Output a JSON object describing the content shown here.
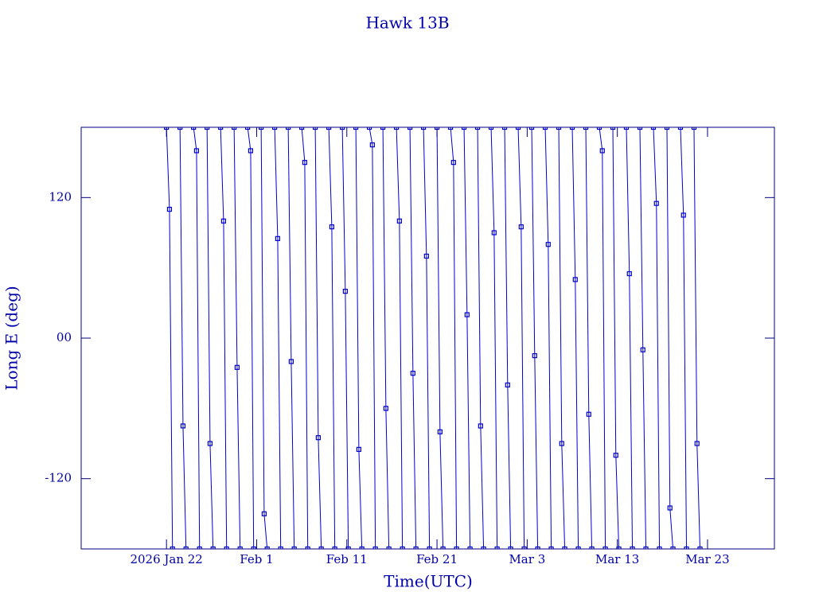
{
  "chart_data": {
    "type": "line",
    "title": "Hawk 13B",
    "xlabel": "Time(UTC)",
    "ylabel": "Long E (deg)",
    "xlim": [
      "2026-01-12T13:00",
      "2026-03-30T10:00"
    ],
    "xticks": [
      {
        "value": "2026-01-22T00:00",
        "label": "2026 Jan 22"
      },
      {
        "value": "2026-02-01T00:00",
        "label": "Feb  1"
      },
      {
        "value": "2026-02-11T00:00",
        "label": "Feb 11"
      },
      {
        "value": "2026-02-21T00:00",
        "label": "Feb 21"
      },
      {
        "value": "2026-03-03T00:00",
        "label": "Mar  3"
      },
      {
        "value": "2026-03-13T00:00",
        "label": "Mar 13"
      },
      {
        "value": "2026-03-23T00:00",
        "label": "Mar 23"
      }
    ],
    "ylim": [
      -180,
      180
    ],
    "yticks": [
      -120,
      {
        "value": 0,
        "label": "00"
      },
      120
    ],
    "series": [
      {
        "color": "#0000cc",
        "x": [
          "2026-01-22T00:00",
          "2026-01-22T08:00",
          "2026-01-22T16:00",
          null,
          "2026-01-23T12:00",
          "2026-01-23T20:00",
          "2026-01-24T04:00",
          null,
          "2026-01-25T00:00",
          "2026-01-25T08:00",
          "2026-01-25T16:00",
          null,
          "2026-01-26T12:00",
          "2026-01-26T20:00",
          "2026-01-27T04:00",
          null,
          "2026-01-28T00:00",
          "2026-01-28T08:00",
          "2026-01-28T16:00",
          null,
          "2026-01-29T12:00",
          "2026-01-29T20:00",
          "2026-01-30T04:00",
          null,
          "2026-01-31T00:00",
          "2026-01-31T08:00",
          "2026-01-31T16:00",
          null,
          "2026-02-01T12:00",
          "2026-02-01T20:00",
          "2026-02-02T04:00",
          null,
          "2026-02-03T00:00",
          "2026-02-03T08:00",
          "2026-02-03T16:00",
          null,
          "2026-02-04T12:00",
          "2026-02-04T20:00",
          "2026-02-05T04:00",
          null,
          "2026-02-06T00:00",
          "2026-02-06T08:00",
          "2026-02-06T16:00",
          null,
          "2026-02-07T12:00",
          "2026-02-07T20:00",
          "2026-02-08T04:00",
          null,
          "2026-02-09T00:00",
          "2026-02-09T08:00",
          "2026-02-09T16:00",
          null,
          "2026-02-10T12:00",
          "2026-02-10T20:00",
          "2026-02-11T04:00",
          null,
          "2026-02-12T00:00",
          "2026-02-12T08:00",
          "2026-02-12T16:00",
          null,
          "2026-02-13T12:00",
          "2026-02-13T20:00",
          "2026-02-14T04:00",
          null,
          "2026-02-15T00:00",
          "2026-02-15T08:00",
          "2026-02-15T16:00",
          null,
          "2026-02-16T12:00",
          "2026-02-16T20:00",
          "2026-02-17T04:00",
          null,
          "2026-02-18T00:00",
          "2026-02-18T08:00",
          "2026-02-18T16:00",
          null,
          "2026-02-19T12:00",
          "2026-02-19T20:00",
          "2026-02-20T04:00",
          null,
          "2026-02-21T00:00",
          "2026-02-21T08:00",
          "2026-02-21T16:00",
          null,
          "2026-02-22T12:00",
          "2026-02-22T20:00",
          "2026-02-23T04:00",
          null,
          "2026-02-24T00:00",
          "2026-02-24T08:00",
          "2026-02-24T16:00",
          null,
          "2026-02-25T12:00",
          "2026-02-25T20:00",
          "2026-02-26T04:00",
          null,
          "2026-02-27T00:00",
          "2026-02-27T08:00",
          "2026-02-27T16:00",
          null,
          "2026-02-28T12:00",
          "2026-02-28T20:00",
          "2026-03-01T04:00",
          null,
          "2026-03-02T00:00",
          "2026-03-02T08:00",
          "2026-03-02T16:00",
          null,
          "2026-03-03T12:00",
          "2026-03-03T20:00",
          "2026-03-04T04:00",
          null,
          "2026-03-05T00:00",
          "2026-03-05T08:00",
          "2026-03-05T16:00",
          null,
          "2026-03-06T12:00",
          "2026-03-06T20:00",
          "2026-03-07T04:00",
          null,
          "2026-03-08T00:00",
          "2026-03-08T08:00",
          "2026-03-08T16:00",
          null,
          "2026-03-09T12:00",
          "2026-03-09T20:00",
          "2026-03-10T04:00",
          null,
          "2026-03-11T00:00",
          "2026-03-11T08:00",
          "2026-03-11T16:00",
          null,
          "2026-03-12T12:00",
          "2026-03-12T20:00",
          "2026-03-13T04:00",
          null,
          "2026-03-14T00:00",
          "2026-03-14T08:00",
          "2026-03-14T16:00",
          null,
          "2026-03-15T12:00",
          "2026-03-15T20:00",
          "2026-03-16T04:00",
          null,
          "2026-03-17T00:00",
          "2026-03-17T08:00",
          "2026-03-17T16:00",
          null,
          "2026-03-18T12:00",
          "2026-03-18T20:00",
          "2026-03-19T04:00",
          null,
          "2026-03-20T00:00",
          "2026-03-20T08:00",
          "2026-03-20T16:00",
          null,
          "2026-03-21T12:00",
          "2026-03-21T20:00",
          "2026-03-22T04:00"
        ],
        "values": [
          180,
          110,
          -180,
          null,
          180,
          -75,
          -180,
          null,
          180,
          160,
          -180,
          null,
          180,
          -90,
          -180,
          null,
          180,
          100,
          -180,
          null,
          180,
          -25,
          -180,
          null,
          180,
          160,
          -180,
          null,
          180,
          -150,
          -180,
          null,
          180,
          85,
          -180,
          null,
          180,
          -20,
          -180,
          null,
          180,
          150,
          -180,
          null,
          180,
          -85,
          -180,
          null,
          180,
          95,
          -180,
          null,
          180,
          40,
          -180,
          null,
          180,
          -95,
          -180,
          null,
          180,
          165,
          -180,
          null,
          180,
          -60,
          -180,
          null,
          180,
          100,
          -180,
          null,
          180,
          -30,
          -180,
          null,
          180,
          70,
          -180,
          null,
          180,
          -80,
          -180,
          null,
          180,
          150,
          -180,
          null,
          180,
          20,
          -180,
          null,
          180,
          -75,
          -180,
          null,
          180,
          90,
          -180,
          null,
          180,
          -40,
          -180,
          null,
          180,
          95,
          -180,
          null,
          180,
          -15,
          -180,
          null,
          180,
          80,
          -180,
          null,
          180,
          -90,
          -180,
          null,
          180,
          50,
          -180,
          null,
          180,
          -65,
          -180,
          null,
          180,
          160,
          -180,
          null,
          180,
          -100,
          -180,
          null,
          180,
          55,
          -180,
          null,
          180,
          -10,
          -180,
          null,
          180,
          115,
          -180,
          null,
          180,
          -145,
          -180,
          null,
          180,
          105,
          -180,
          null,
          180,
          -90,
          -180
        ]
      }
    ]
  }
}
